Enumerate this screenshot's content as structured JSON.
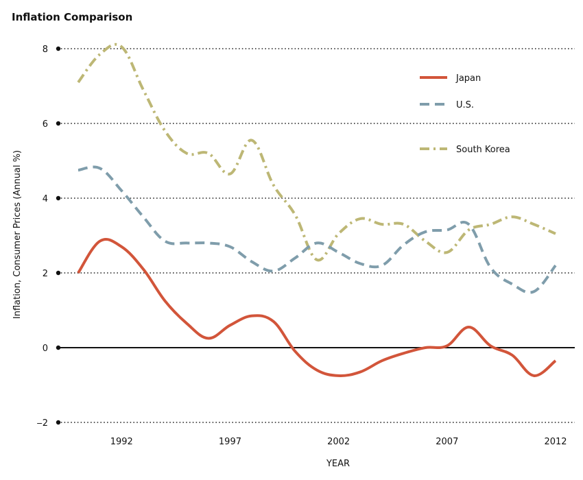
{
  "chart_data": {
    "type": "line",
    "title": "Inflation Comparison",
    "xlabel": "YEAR",
    "ylabel": "Inflation, Consumer Prices (Annual %)",
    "xlim": [
      1990,
      2012.5
    ],
    "ylim": [
      -2,
      8
    ],
    "x_ticks": [
      1992,
      1997,
      2002,
      2007,
      2012
    ],
    "y_ticks": [
      -2,
      0,
      2,
      4,
      6,
      8
    ],
    "y_tick_labels": [
      "‒2",
      "0",
      "2",
      "4",
      "6",
      "8"
    ],
    "grid": "horizontal-dotted",
    "legend_position": "top-right",
    "x": [
      1990,
      1991,
      1992,
      1993,
      1994,
      1995,
      1996,
      1997,
      1998,
      1999,
      2000,
      2001,
      2002,
      2003,
      2004,
      2005,
      2006,
      2007,
      2008,
      2009,
      2010,
      2011,
      2012
    ],
    "series": [
      {
        "name": "Japan",
        "color": "#d2553a",
        "style": "solid",
        "values": [
          2.0,
          2.85,
          2.7,
          2.1,
          1.25,
          0.65,
          0.25,
          0.6,
          0.85,
          0.7,
          -0.1,
          -0.6,
          -0.75,
          -0.65,
          -0.35,
          -0.15,
          0.0,
          0.05,
          0.55,
          0.05,
          -0.2,
          -0.75,
          -0.35
        ]
      },
      {
        "name": "U.S.",
        "color": "#7f9dab",
        "style": "dashed",
        "values": [
          4.75,
          4.8,
          4.2,
          3.5,
          2.85,
          2.8,
          2.8,
          2.7,
          2.3,
          2.05,
          2.4,
          2.8,
          2.55,
          2.25,
          2.2,
          2.75,
          3.1,
          3.15,
          3.3,
          2.15,
          1.7,
          1.5,
          2.2
        ]
      },
      {
        "name": "South Korea",
        "color": "#bdb775",
        "style": "dashdot",
        "values": [
          7.1,
          7.85,
          8.05,
          6.9,
          5.8,
          5.2,
          5.2,
          4.65,
          5.55,
          4.35,
          3.55,
          2.35,
          3.05,
          3.45,
          3.3,
          3.3,
          2.85,
          2.55,
          3.15,
          3.3,
          3.5,
          3.3,
          3.05
        ]
      }
    ]
  }
}
